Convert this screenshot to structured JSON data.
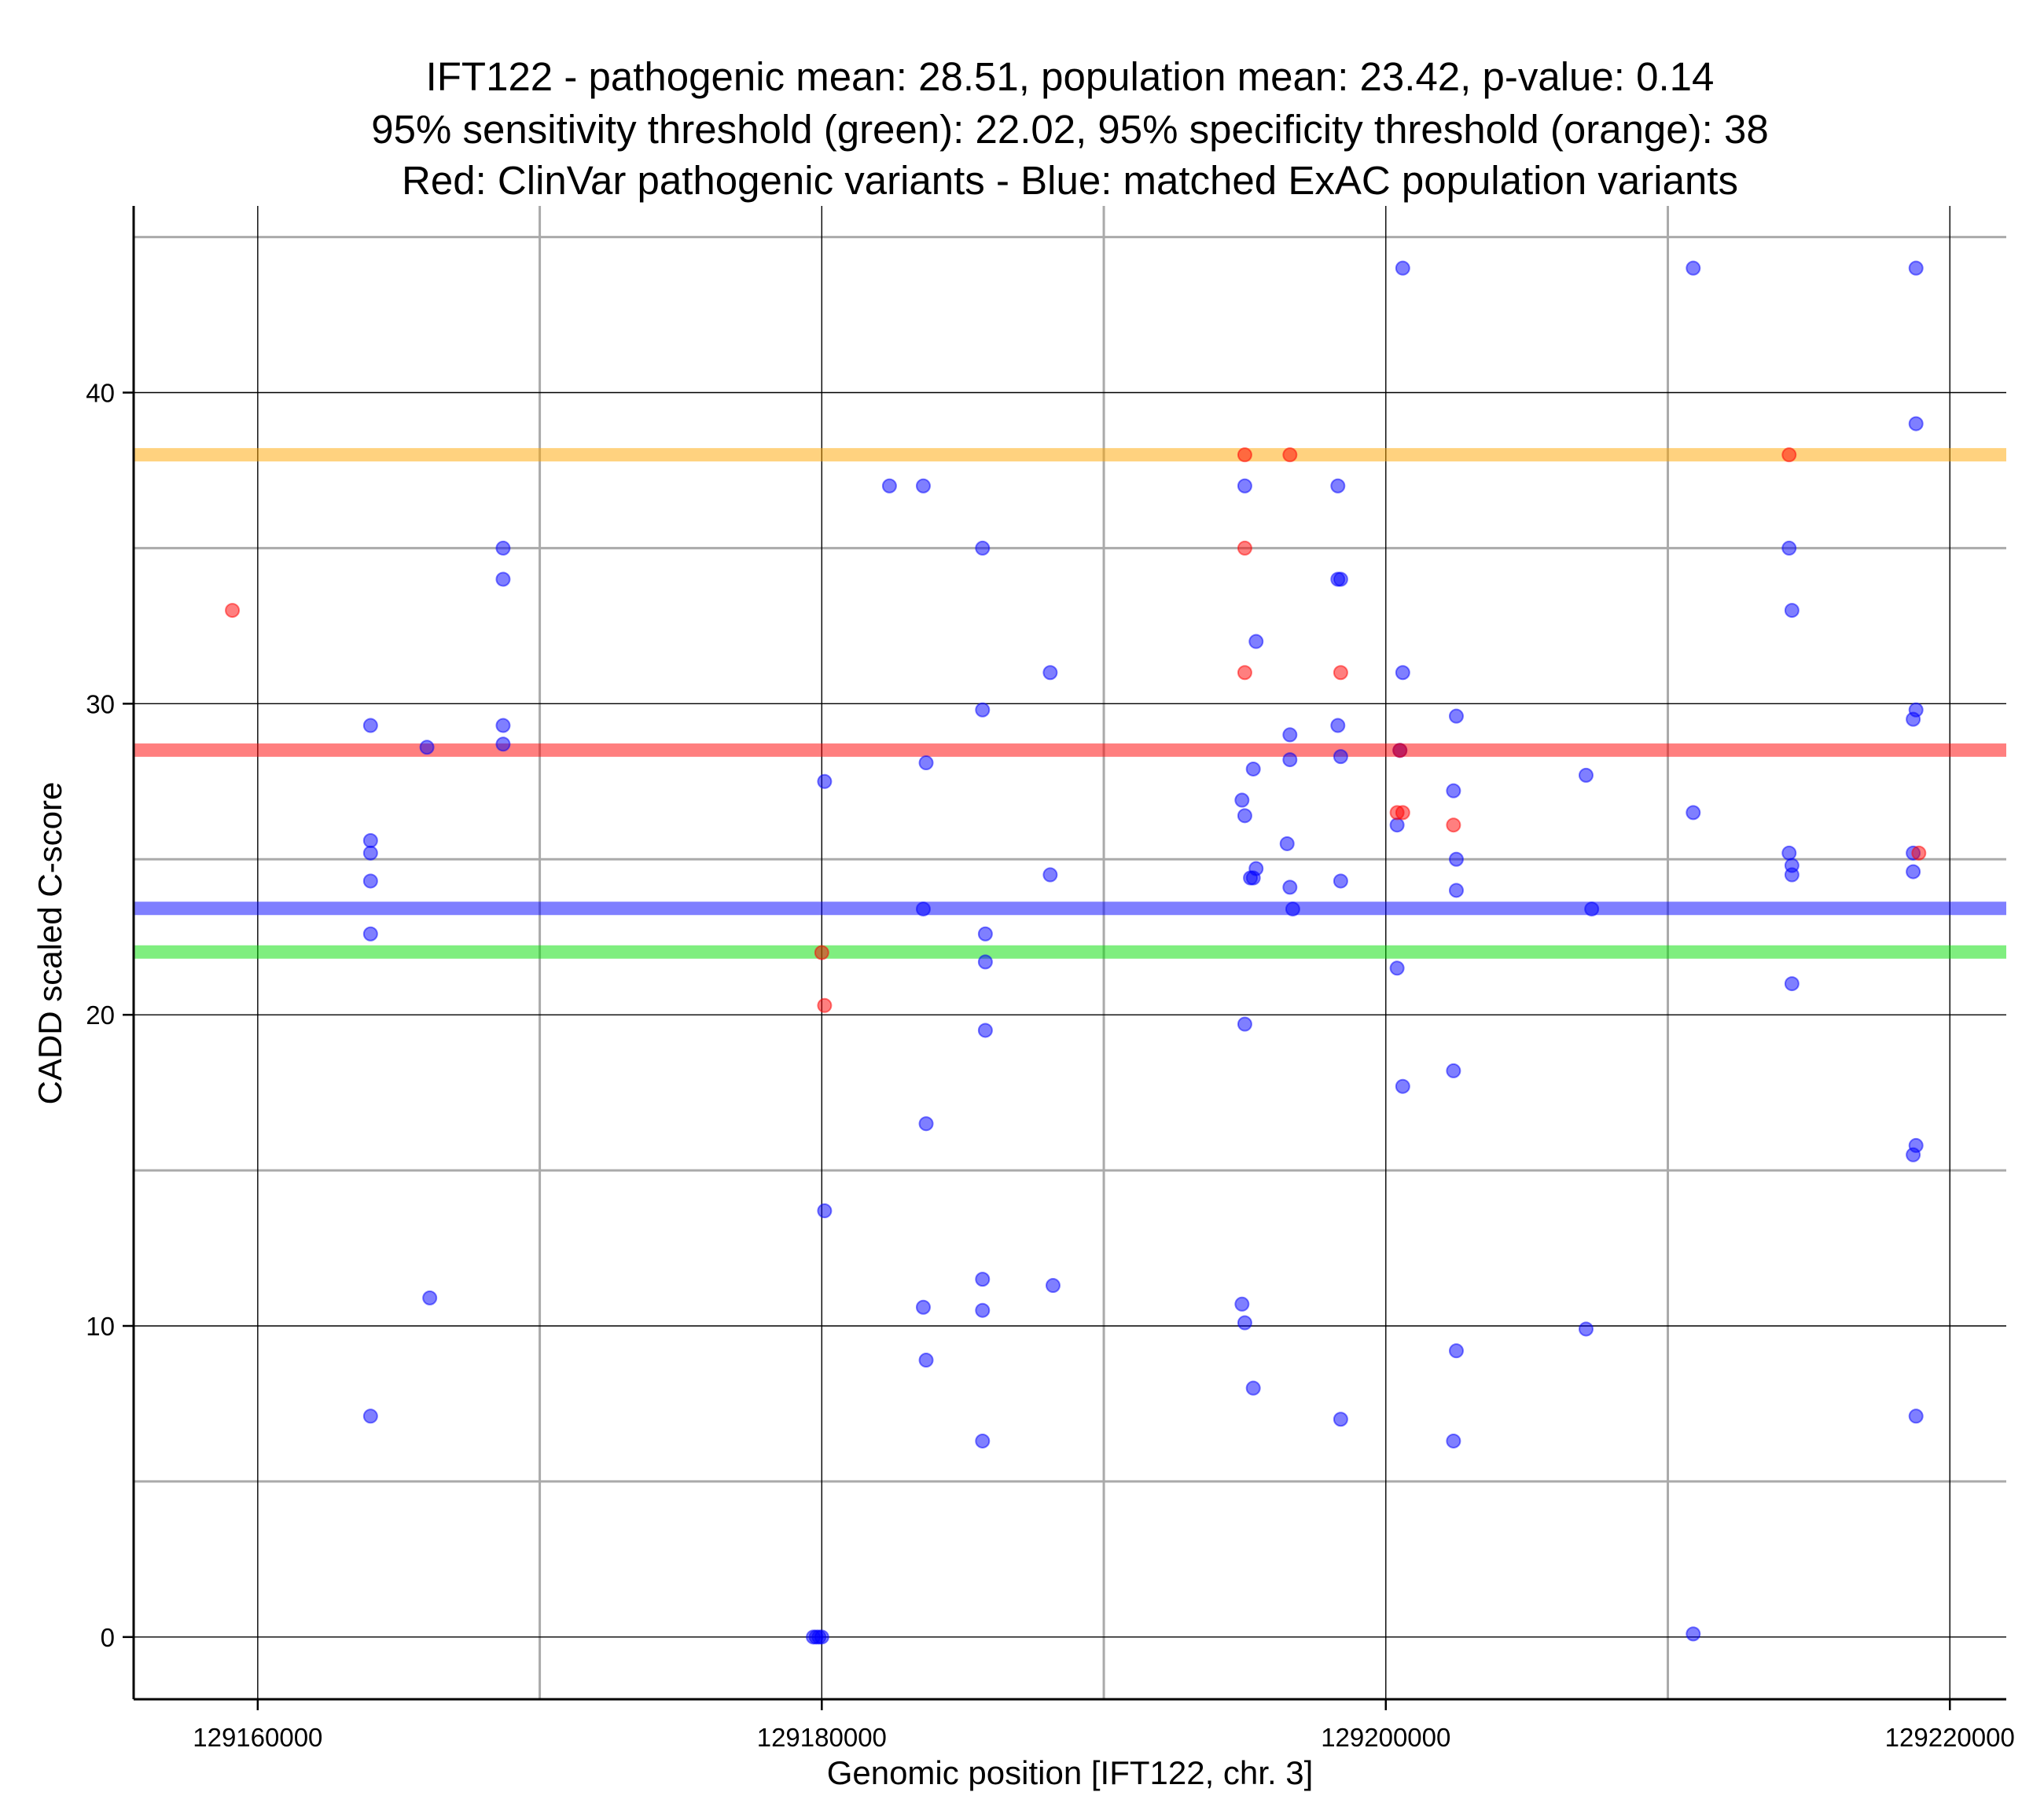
{
  "chart_data": {
    "type": "scatter",
    "title_lines": [
      "IFT122 - pathogenic mean: 28.51, population mean: 23.42, p-value: 0.14",
      "95% sensitivity threshold (green): 22.02, 95% specificity threshold (orange): 38",
      "Red: ClinVar pathogenic variants - Blue: matched ExAC population variants"
    ],
    "xlabel": "Genomic position [IFT122, chr. 3]",
    "ylabel": "CADD scaled C-score",
    "xlim": [
      129155600,
      129222000
    ],
    "ylim": [
      -2,
      46
    ],
    "x_ticks": [
      129160000,
      129180000,
      129200000,
      129220000
    ],
    "x_tick_labels": [
      "129160000",
      "129180000",
      "129200000",
      "129220000"
    ],
    "y_ticks": [
      0,
      10,
      20,
      30,
      40
    ],
    "y_tick_labels": [
      "0",
      "10",
      "20",
      "30",
      "40"
    ],
    "x_minor_grid": [
      129170000,
      129190000,
      129210000
    ],
    "y_minor_grid": [
      5,
      15,
      25,
      35,
      45
    ],
    "grid": true,
    "colors": {
      "pathogenic": "#ff0000",
      "population": "#0000ff",
      "sensitivity": "#00dd00",
      "specificity": "#ffa500"
    },
    "hlines": [
      {
        "name": "specificity",
        "value": 38,
        "color": "#ffa500"
      },
      {
        "name": "pathogenic mean",
        "value": 28.51,
        "color": "#ff0000"
      },
      {
        "name": "population mean",
        "value": 23.42,
        "color": "#0000ff"
      },
      {
        "name": "sensitivity",
        "value": 22.02,
        "color": "#00dd00"
      }
    ],
    "series": [
      {
        "name": "ClinVar pathogenic",
        "color": "#ff0000",
        "points": [
          [
            129159100,
            33
          ],
          [
            129195000,
            38
          ],
          [
            129196600,
            38
          ],
          [
            129214300,
            38
          ],
          [
            129195000,
            35
          ],
          [
            129195000,
            31
          ],
          [
            129198400,
            31
          ],
          [
            129200500,
            28.5
          ],
          [
            129200400,
            26.5
          ],
          [
            129200600,
            26.5
          ],
          [
            129202400,
            26.1
          ],
          [
            129218900,
            25.2
          ],
          [
            129180100,
            20.3
          ],
          [
            129180000,
            22
          ]
        ]
      },
      {
        "name": "matched ExAC population",
        "color": "#0000ff",
        "points": [
          [
            129200600,
            44
          ],
          [
            129210900,
            44
          ],
          [
            129218800,
            44
          ],
          [
            129218800,
            39
          ],
          [
            129182400,
            37
          ],
          [
            129183600,
            37
          ],
          [
            129195000,
            37
          ],
          [
            129198300,
            37
          ],
          [
            129168700,
            35
          ],
          [
            129185700,
            35
          ],
          [
            129214300,
            35
          ],
          [
            129168700,
            34
          ],
          [
            129198300,
            34
          ],
          [
            129198400,
            34
          ],
          [
            129214400,
            33
          ],
          [
            129195400,
            32
          ],
          [
            129188100,
            31
          ],
          [
            129200600,
            31
          ],
          [
            129168700,
            29.3
          ],
          [
            129185700,
            29.8
          ],
          [
            129198300,
            29.3
          ],
          [
            129202500,
            29.6
          ],
          [
            129218700,
            29.5
          ],
          [
            129218800,
            29.8
          ],
          [
            129164000,
            29.3
          ],
          [
            129166000,
            28.6
          ],
          [
            129168700,
            28.7
          ],
          [
            129196600,
            29
          ],
          [
            129200500,
            28.5
          ],
          [
            129183700,
            28.1
          ],
          [
            129196600,
            28.2
          ],
          [
            129198400,
            28.3
          ],
          [
            129195300,
            27.9
          ],
          [
            129180100,
            27.5
          ],
          [
            129207100,
            27.7
          ],
          [
            129194900,
            26.9
          ],
          [
            129202400,
            27.2
          ],
          [
            129195000,
            26.4
          ],
          [
            129200400,
            26.1
          ],
          [
            129210900,
            26.5
          ],
          [
            129164000,
            25.6
          ],
          [
            129196500,
            25.5
          ],
          [
            129164000,
            25.2
          ],
          [
            129202500,
            25
          ],
          [
            129214300,
            25.2
          ],
          [
            129214400,
            24.8
          ],
          [
            129218700,
            25.2
          ],
          [
            129195400,
            24.7
          ],
          [
            129195200,
            24.4
          ],
          [
            129195300,
            24.4
          ],
          [
            129214400,
            24.5
          ],
          [
            129218700,
            24.6
          ],
          [
            129164000,
            24.3
          ],
          [
            129188100,
            24.5
          ],
          [
            129198400,
            24.3
          ],
          [
            129196600,
            24.1
          ],
          [
            129202500,
            24
          ],
          [
            129183600,
            23.4
          ],
          [
            129196700,
            23.4
          ],
          [
            129207300,
            23.4
          ],
          [
            129164000,
            22.6
          ],
          [
            129185800,
            22.6
          ],
          [
            129185800,
            21.7
          ],
          [
            129200400,
            21.5
          ],
          [
            129214400,
            21
          ],
          [
            129195000,
            19.7
          ],
          [
            129185800,
            19.5
          ],
          [
            129202400,
            18.2
          ],
          [
            129200600,
            17.7
          ],
          [
            129183700,
            16.5
          ],
          [
            129218700,
            15.5
          ],
          [
            129218800,
            15.8
          ],
          [
            129180100,
            13.7
          ],
          [
            129185700,
            11.5
          ],
          [
            129188200,
            11.3
          ],
          [
            129166100,
            10.9
          ],
          [
            129183600,
            10.6
          ],
          [
            129185700,
            10.5
          ],
          [
            129194900,
            10.7
          ],
          [
            129195000,
            10.1
          ],
          [
            129207100,
            9.9
          ],
          [
            129202500,
            9.2
          ],
          [
            129183700,
            8.9
          ],
          [
            129195300,
            8
          ],
          [
            129164000,
            7.1
          ],
          [
            129198400,
            7
          ],
          [
            129218800,
            7.1
          ],
          [
            129185700,
            6.3
          ],
          [
            129202400,
            6.3
          ],
          [
            129179700,
            0
          ],
          [
            129179800,
            0
          ],
          [
            129179900,
            0
          ],
          [
            129180000,
            0
          ],
          [
            129210900,
            0.1
          ]
        ]
      }
    ]
  }
}
